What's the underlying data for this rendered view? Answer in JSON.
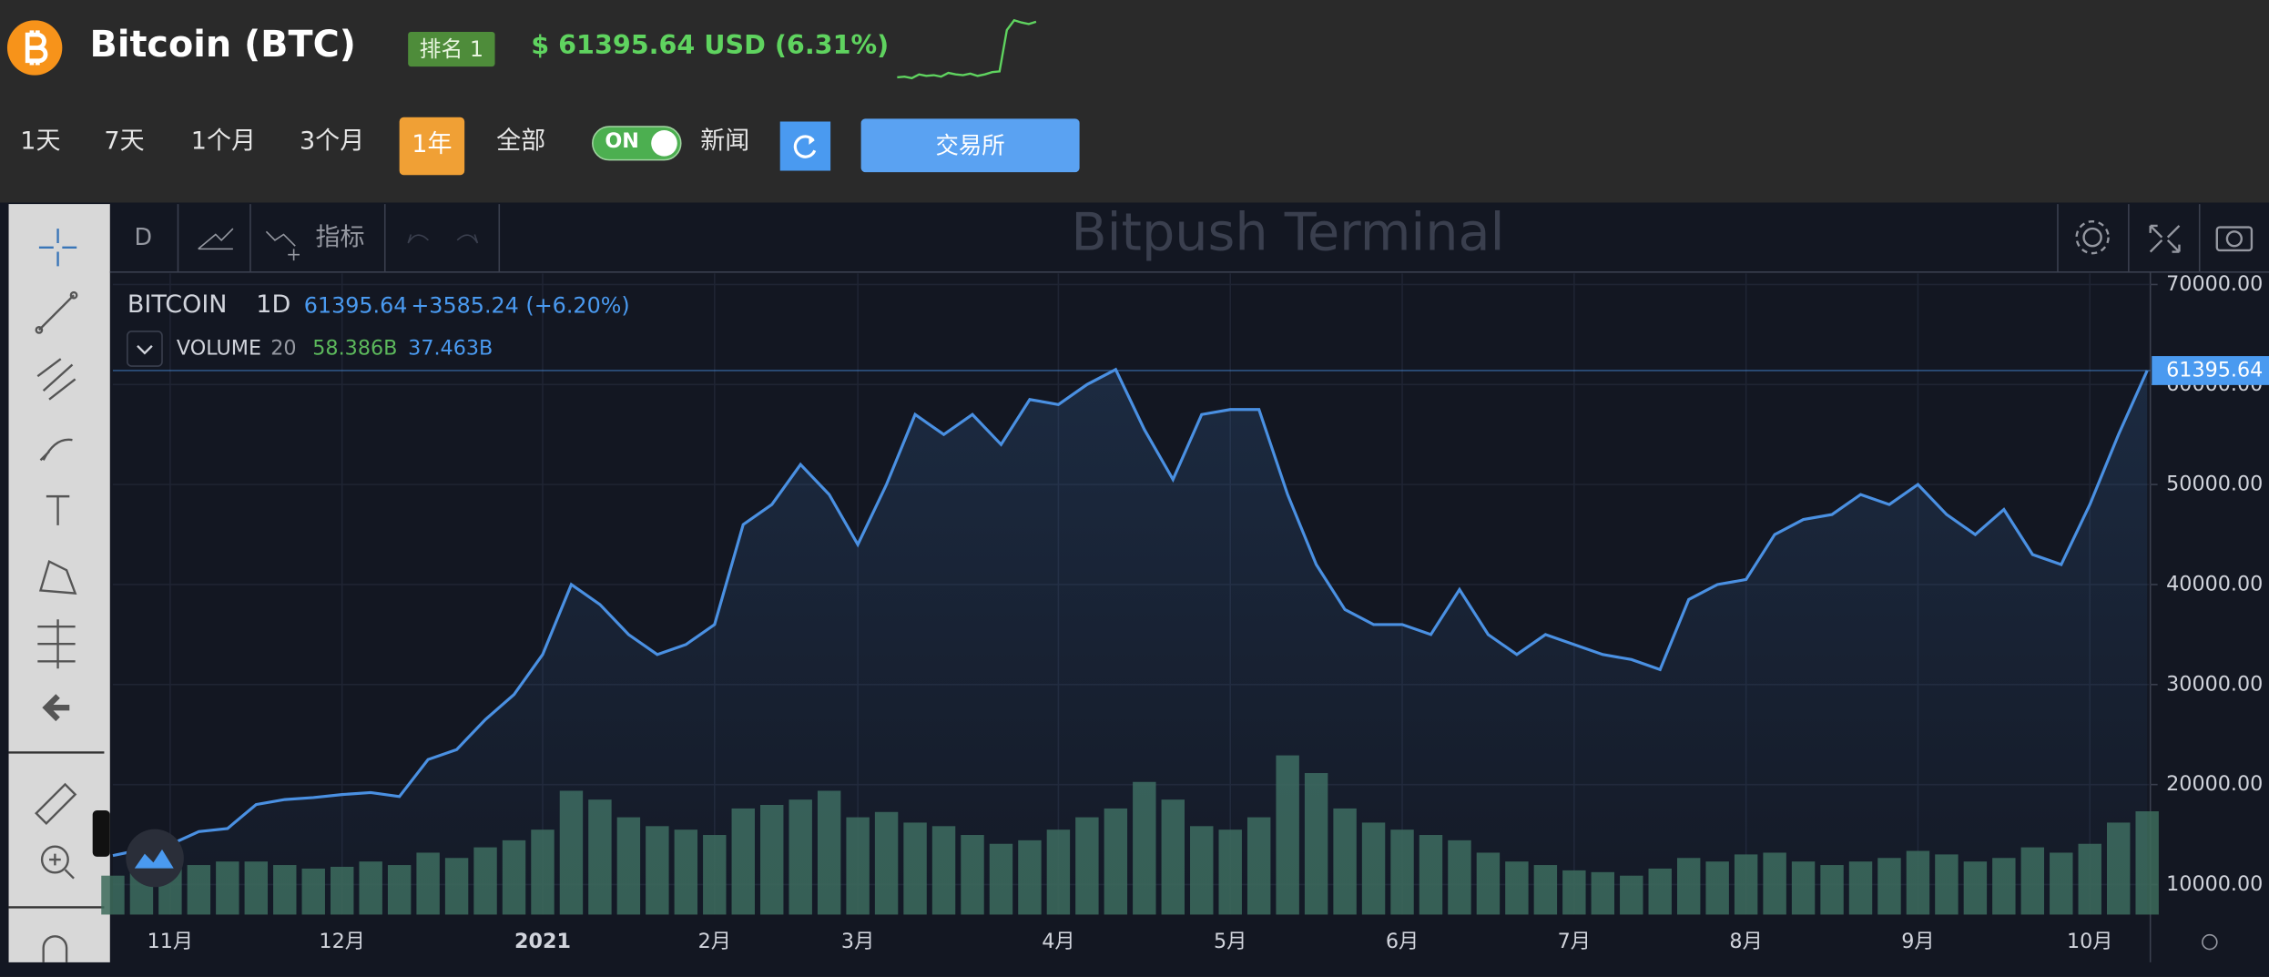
{
  "header": {
    "title": "Bitcoin (BTC)",
    "rank": "排名 1",
    "price": "$ 61395.64 USD (6.31%)",
    "sparkline": {
      "color": "#5fd35f",
      "values": [
        54200,
        54300,
        54100,
        54600,
        54400,
        54500,
        54300,
        54800,
        54600,
        54500,
        54700,
        54400,
        54600,
        54900,
        55000,
        60500,
        61800,
        61500,
        61300,
        61600
      ]
    }
  },
  "controls": {
    "ranges": [
      "1天",
      "7天",
      "1个月",
      "3个月",
      "1年",
      "全部"
    ],
    "active_range": "1年",
    "toggle": "ON",
    "news": "新闻",
    "exchange": "交易所"
  },
  "toolbar": {
    "interval": "D",
    "indicators": "指标",
    "watermark": "Bitpush Terminal"
  },
  "chart_data": {
    "type": "line",
    "interval": "1D",
    "change": "+3585.24 (+6.20%)",
    "volume_length": "20",
    "volume_values": [
      "58.386B",
      "37.463B"
    ],
    "categories": [
      null,
      null,
      "11月",
      null,
      null,
      null,
      null,
      null,
      "12月",
      null,
      null,
      null,
      null,
      null,
      null,
      "2021",
      null,
      null,
      null,
      null,
      null,
      "2月",
      null,
      null,
      null,
      null,
      "3月",
      null,
      null,
      null,
      null,
      null,
      null,
      "4月",
      null,
      null,
      null,
      null,
      null,
      "5月",
      null,
      null,
      null,
      null,
      null,
      "6月",
      null,
      null,
      null,
      null,
      null,
      "7月",
      null,
      null,
      null,
      null,
      null,
      "8月",
      null,
      null,
      null,
      null,
      null,
      "9月",
      null,
      null,
      null,
      null,
      null,
      "10月",
      null,
      null
    ],
    "series": [
      {
        "name": "BITCOIN",
        "color": "#4a90e2",
        "values": [
          12900,
          13500,
          14000,
          15300,
          15600,
          18000,
          18500,
          18700,
          19000,
          19200,
          18800,
          22500,
          23500,
          26500,
          29000,
          33000,
          40000,
          38000,
          35000,
          33000,
          34000,
          36000,
          46000,
          48000,
          52000,
          49000,
          44000,
          50000,
          57000,
          55000,
          57000,
          54000,
          58500,
          58000,
          60000,
          61500,
          55500,
          50500,
          57000,
          57500,
          57500,
          49000,
          42000,
          37500,
          36000,
          36000,
          35000,
          39500,
          35000,
          33000,
          35000,
          34000,
          33000,
          32500,
          31500,
          38500,
          40000,
          40500,
          45000,
          46500,
          47000,
          49000,
          48000,
          50000,
          47000,
          45000,
          47500,
          43000,
          42000,
          48000,
          55000,
          61395.64
        ]
      },
      {
        "name": "VOLUME",
        "color": "#3d6b5a",
        "values": [
          22,
          25,
          27,
          28,
          30,
          30,
          28,
          26,
          27,
          30,
          28,
          35,
          32,
          38,
          42,
          48,
          70,
          65,
          55,
          50,
          48,
          45,
          60,
          62,
          65,
          70,
          55,
          58,
          52,
          50,
          45,
          40,
          42,
          48,
          55,
          60,
          75,
          65,
          50,
          48,
          55,
          90,
          80,
          60,
          52,
          48,
          45,
          42,
          35,
          30,
          28,
          25,
          24,
          22,
          26,
          32,
          30,
          34,
          35,
          30,
          28,
          30,
          32,
          36,
          34,
          30,
          32,
          38,
          35,
          40,
          52,
          58.386
        ]
      }
    ],
    "ylim": [
      7000,
      71100
    ],
    "yticks": [
      {
        "value": 10000,
        "label": "10000.00"
      },
      {
        "value": 20000,
        "label": "20000.00"
      },
      {
        "value": 30000,
        "label": "30000.00"
      },
      {
        "value": 40000,
        "label": "40000.00"
      },
      {
        "value": 50000,
        "label": "50000.00"
      },
      {
        "value": 60000,
        "label": "60000.00"
      },
      {
        "value": 70000,
        "label": "70000.00"
      }
    ],
    "grid": true
  }
}
